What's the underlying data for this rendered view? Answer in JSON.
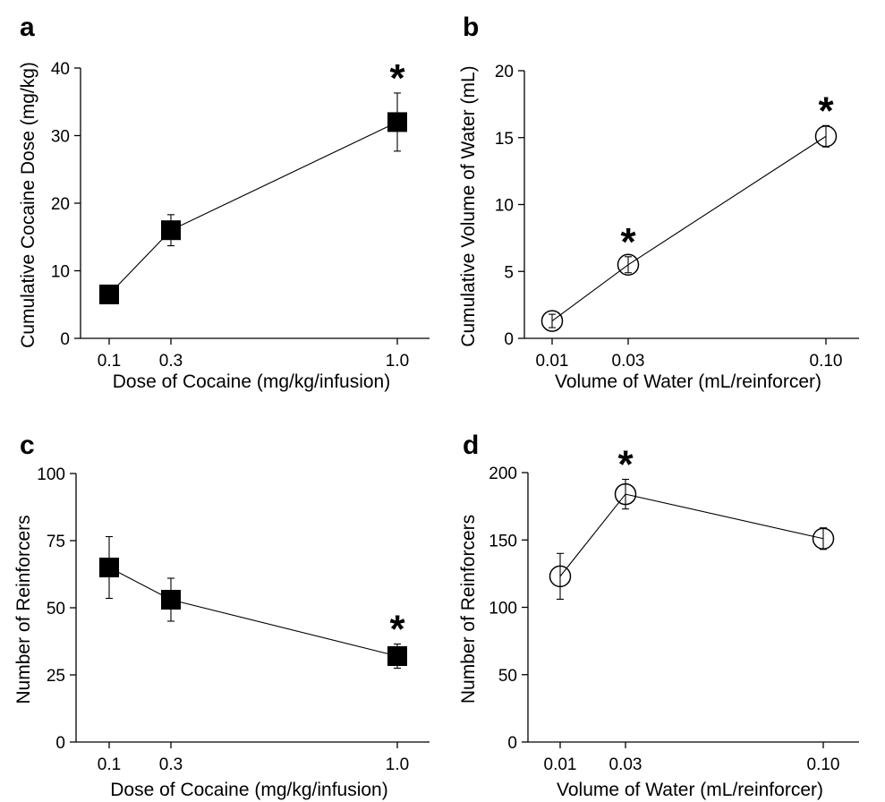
{
  "chart_data": [
    {
      "panel": "a",
      "type": "line",
      "marker": "square-filled",
      "xlabel": "Dose of Cocaine (mg/kg/infusion)",
      "ylabel": "Cumulative Cocaine Dose (mg/kg)",
      "x_tick_labels": [
        "0.1",
        "0.3",
        "1.0"
      ],
      "y_ticks": [
        "0",
        "10",
        "20",
        "30",
        "40"
      ],
      "ylim": [
        0,
        40
      ],
      "points": [
        {
          "x": "0.1",
          "y": 6.5,
          "err": 0.5,
          "star": ""
        },
        {
          "x": "0.3",
          "y": 16,
          "err": 2.3,
          "star": ""
        },
        {
          "x": "1.0",
          "y": 32,
          "err": 4.3,
          "star": "*"
        }
      ]
    },
    {
      "panel": "b",
      "type": "line",
      "marker": "circle-open",
      "xlabel": "Volume of Water (mL/reinforcer)",
      "ylabel": "Cumulative Volume of Water (mL)",
      "x_tick_labels": [
        "0.01",
        "0.03",
        "0.10"
      ],
      "y_ticks": [
        "0",
        "5",
        "10",
        "15",
        "20"
      ],
      "ylim": [
        0,
        20
      ],
      "points": [
        {
          "x": "0.01",
          "y": 1.3,
          "err": 0.5,
          "star": ""
        },
        {
          "x": "0.03",
          "y": 5.5,
          "err": 0.6,
          "star": "*"
        },
        {
          "x": "0.10",
          "y": 15.1,
          "err": 0.8,
          "star": "*"
        }
      ]
    },
    {
      "panel": "c",
      "type": "line",
      "marker": "square-filled",
      "xlabel": "Dose of Cocaine (mg/kg/infusion)",
      "ylabel": "Number of Reinforcers",
      "x_tick_labels": [
        "0.1",
        "0.3",
        "1.0"
      ],
      "y_ticks": [
        "0",
        "25",
        "50",
        "75",
        "100"
      ],
      "ylim": [
        0,
        100
      ],
      "points": [
        {
          "x": "0.1",
          "y": 65,
          "err": 11.5,
          "star": ""
        },
        {
          "x": "0.3",
          "y": 53,
          "err": 8,
          "star": ""
        },
        {
          "x": "1.0",
          "y": 32,
          "err": 4.5,
          "star": "*"
        }
      ]
    },
    {
      "panel": "d",
      "type": "line",
      "marker": "circle-open",
      "xlabel": "Volume of Water (mL/reinforcer)",
      "ylabel": "Number of Reinforcers",
      "x_tick_labels": [
        "0.01",
        "0.03",
        "0.10"
      ],
      "y_ticks": [
        "0",
        "50",
        "100",
        "150",
        "200"
      ],
      "ylim": [
        0,
        200
      ],
      "points": [
        {
          "x": "0.01",
          "y": 123,
          "err": 17,
          "star": ""
        },
        {
          "x": "0.03",
          "y": 184,
          "err": 11,
          "star": "*"
        },
        {
          "x": "0.10",
          "y": 151,
          "err": 8,
          "star": ""
        }
      ]
    }
  ]
}
